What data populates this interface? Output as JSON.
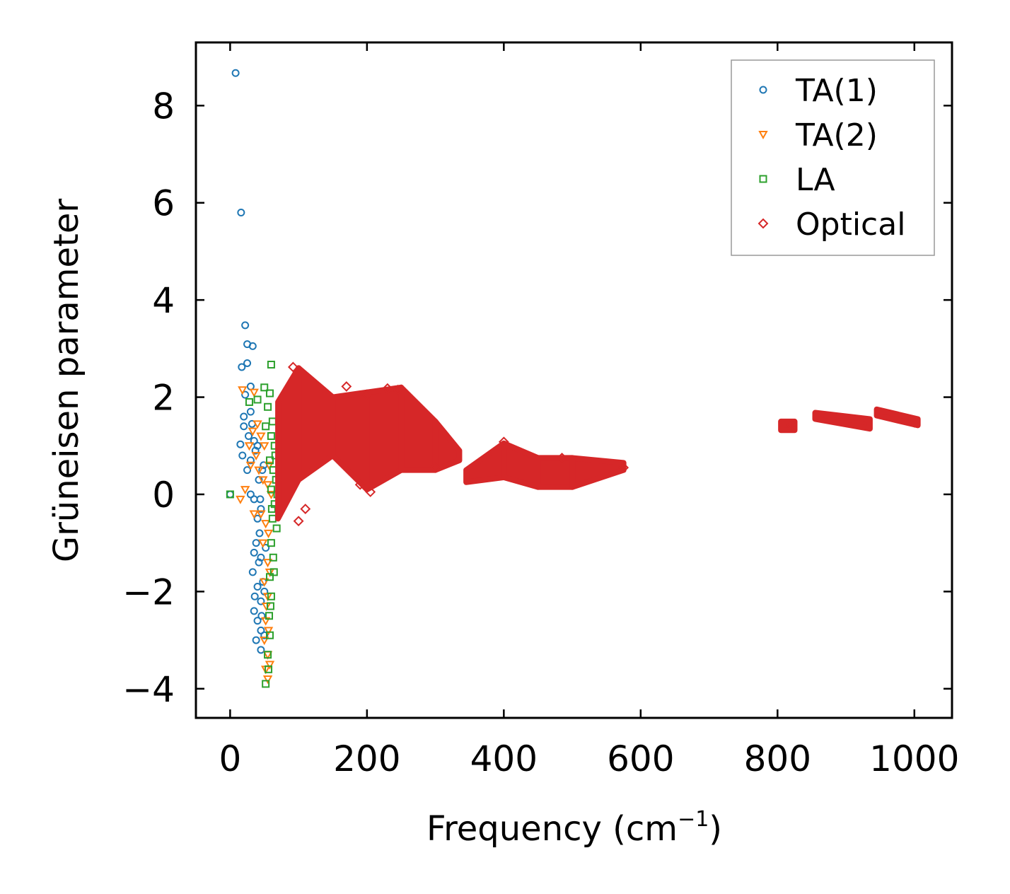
{
  "chart_data": {
    "type": "scatter",
    "title": "",
    "xlabel": "Frequency (cm",
    "xlabel_sup": "−1",
    "xlabel_suffix": ")",
    "ylabel": "Grüneisen parameter",
    "xlim": [
      -50,
      1055
    ],
    "ylim": [
      -4.6,
      9.3
    ],
    "xticks": [
      0,
      200,
      400,
      600,
      800,
      1000
    ],
    "xtick_labels": [
      "0",
      "200",
      "400",
      "600",
      "800",
      "1000"
    ],
    "yticks": [
      -4,
      -2,
      0,
      2,
      4,
      6,
      8
    ],
    "ytick_labels": [
      "−4",
      "−2",
      "0",
      "2",
      "4",
      "6",
      "8"
    ],
    "legend_position": "top-right",
    "grid": false,
    "series": [
      {
        "name": "TA(1)",
        "marker": "circle",
        "color": "#1f77b4",
        "points": [
          [
            8,
            8.67
          ],
          [
            16,
            5.8
          ],
          [
            22,
            3.48
          ],
          [
            25,
            3.09
          ],
          [
            33,
            3.05
          ],
          [
            25,
            2.7
          ],
          [
            17,
            2.62
          ],
          [
            30,
            2.22
          ],
          [
            22,
            2.05
          ],
          [
            30,
            1.7
          ],
          [
            20,
            1.6
          ],
          [
            32,
            1.45
          ],
          [
            20,
            1.4
          ],
          [
            27,
            1.2
          ],
          [
            35,
            1.1
          ],
          [
            15,
            1.03
          ],
          [
            40,
            1.0
          ],
          [
            18,
            0.8
          ],
          [
            30,
            0.7
          ],
          [
            25,
            0.5
          ],
          [
            42,
            0.3
          ],
          [
            30,
            0.0
          ],
          [
            35,
            -0.1
          ],
          [
            45,
            -0.3
          ],
          [
            40,
            -0.5
          ],
          [
            43,
            -0.8
          ],
          [
            38,
            -1.0
          ],
          [
            35,
            -1.2
          ],
          [
            45,
            -1.3
          ],
          [
            33,
            -1.6
          ],
          [
            40,
            -1.9
          ],
          [
            45,
            -2.2
          ],
          [
            35,
            -2.4
          ],
          [
            40,
            -2.6
          ],
          [
            45,
            -2.8
          ],
          [
            38,
            -3.0
          ],
          [
            45,
            -3.2
          ],
          [
            42,
            -1.4
          ],
          [
            48,
            -1.8
          ],
          [
            46,
            -2.5
          ],
          [
            36,
            -2.1
          ],
          [
            50,
            -2.0
          ],
          [
            50,
            -2.9
          ],
          [
            44,
            -0.1
          ],
          [
            47,
            0.5
          ],
          [
            49,
            0.6
          ],
          [
            37,
            0.9
          ],
          [
            52,
            -1.1
          ],
          [
            0,
            0.0
          ]
        ]
      },
      {
        "name": "TA(2)",
        "marker": "triangle-down",
        "color": "#ff7f0e",
        "points": [
          [
            18,
            2.15
          ],
          [
            35,
            2.1
          ],
          [
            40,
            1.45
          ],
          [
            33,
            1.3
          ],
          [
            45,
            1.2
          ],
          [
            28,
            1.0
          ],
          [
            50,
            1.0
          ],
          [
            38,
            0.8
          ],
          [
            30,
            0.6
          ],
          [
            42,
            0.5
          ],
          [
            22,
            0.1
          ],
          [
            15,
            -0.1
          ],
          [
            48,
            0.3
          ],
          [
            55,
            0.2
          ],
          [
            45,
            -0.4
          ],
          [
            35,
            -0.4
          ],
          [
            52,
            -0.6
          ],
          [
            48,
            -1.0
          ],
          [
            55,
            -1.4
          ],
          [
            50,
            -1.8
          ],
          [
            55,
            -2.1
          ],
          [
            52,
            -2.6
          ],
          [
            50,
            -3.0
          ],
          [
            55,
            -3.3
          ],
          [
            52,
            -3.6
          ],
          [
            55,
            -3.8
          ],
          [
            58,
            -3.5
          ],
          [
            56,
            -2.8
          ],
          [
            53,
            -2.3
          ],
          [
            58,
            -1.6
          ],
          [
            56,
            -0.8
          ],
          [
            60,
            0.0
          ],
          [
            57,
            0.6
          ]
        ]
      },
      {
        "name": "LA",
        "marker": "square",
        "color": "#2ca02c",
        "points": [
          [
            60,
            2.67
          ],
          [
            50,
            2.2
          ],
          [
            58,
            2.08
          ],
          [
            40,
            1.95
          ],
          [
            55,
            1.8
          ],
          [
            28,
            1.9
          ],
          [
            62,
            1.5
          ],
          [
            52,
            1.4
          ],
          [
            60,
            1.2
          ],
          [
            65,
            1.0
          ],
          [
            58,
            0.7
          ],
          [
            63,
            0.5
          ],
          [
            67,
            0.3
          ],
          [
            60,
            0.1
          ],
          [
            65,
            -0.2
          ],
          [
            62,
            -0.5
          ],
          [
            68,
            -0.7
          ],
          [
            60,
            -1.0
          ],
          [
            63,
            -1.3
          ],
          [
            58,
            -1.7
          ],
          [
            60,
            -2.1
          ],
          [
            57,
            -2.5
          ],
          [
            58,
            -2.9
          ],
          [
            55,
            -3.3
          ],
          [
            52,
            -3.9
          ],
          [
            56,
            -3.6
          ],
          [
            66,
            0.8
          ],
          [
            69,
            0.0
          ],
          [
            61,
            -0.3
          ],
          [
            64,
            -1.6
          ],
          [
            59,
            -2.3
          ],
          [
            0,
            0.0
          ]
        ]
      },
      {
        "name": "Optical",
        "marker": "diamond",
        "color": "#d62728",
        "bands": [
          {
            "x0": 70,
            "x1": 100,
            "ylo": [
              -0.5,
              0.3
            ],
            "yhi": [
              1.9,
              2.6
            ]
          },
          {
            "x0": 100,
            "x1": 150,
            "ylo": [
              0.3,
              0.8
            ],
            "yhi": [
              2.6,
              2.0
            ]
          },
          {
            "x0": 150,
            "x1": 200,
            "ylo": [
              0.8,
              0.1
            ],
            "yhi": [
              2.0,
              2.1
            ]
          },
          {
            "x0": 200,
            "x1": 250,
            "ylo": [
              0.1,
              0.5
            ],
            "yhi": [
              2.1,
              2.2
            ]
          },
          {
            "x0": 250,
            "x1": 300,
            "ylo": [
              0.5,
              0.5
            ],
            "yhi": [
              2.2,
              1.5
            ]
          },
          {
            "x0": 300,
            "x1": 335,
            "ylo": [
              0.5,
              0.7
            ],
            "yhi": [
              1.5,
              0.9
            ]
          },
          {
            "x0": 345,
            "x1": 400,
            "ylo": [
              0.25,
              0.35
            ],
            "yhi": [
              0.5,
              1.05
            ]
          },
          {
            "x0": 400,
            "x1": 450,
            "ylo": [
              0.35,
              0.15
            ],
            "yhi": [
              1.05,
              0.75
            ]
          },
          {
            "x0": 450,
            "x1": 500,
            "ylo": [
              0.15,
              0.15
            ],
            "yhi": [
              0.75,
              0.75
            ]
          },
          {
            "x0": 500,
            "x1": 575,
            "ylo": [
              0.15,
              0.5
            ],
            "yhi": [
              0.75,
              0.65
            ]
          },
          {
            "x0": 805,
            "x1": 825,
            "ylo": [
              1.32,
              1.32
            ],
            "yhi": [
              1.5,
              1.5
            ]
          },
          {
            "x0": 855,
            "x1": 935,
            "ylo": [
              1.55,
              1.35
            ],
            "yhi": [
              1.68,
              1.55
            ]
          },
          {
            "x0": 945,
            "x1": 1005,
            "ylo": [
              1.62,
              1.42
            ],
            "yhi": [
              1.75,
              1.55
            ]
          }
        ],
        "points": [
          [
            92,
            2.62
          ],
          [
            170,
            2.22
          ],
          [
            200,
            2.05
          ],
          [
            230,
            2.18
          ],
          [
            245,
            2.15
          ],
          [
            100,
            -0.55
          ],
          [
            110,
            -0.3
          ],
          [
            205,
            0.05
          ],
          [
            190,
            0.2
          ],
          [
            300,
            0.55
          ],
          [
            400,
            1.08
          ],
          [
            485,
            0.75
          ],
          [
            575,
            0.55
          ],
          [
            820,
            1.42
          ],
          [
            1000,
            1.48
          ]
        ]
      }
    ]
  }
}
